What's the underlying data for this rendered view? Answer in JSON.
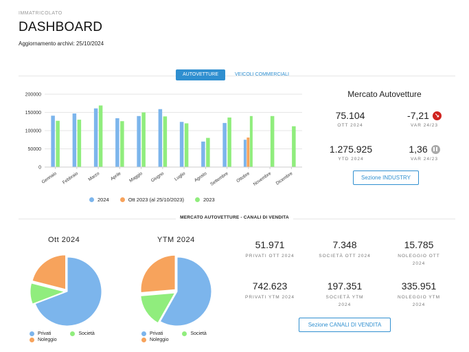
{
  "header": {
    "subtitle": "IMMATRICOLATO",
    "title": "DASHBOARD",
    "update": "Aggiornamento archivi: 25/10/2024"
  },
  "tabs": [
    {
      "label": "AUTOVETTURE",
      "active": true
    },
    {
      "label": "VEICOLI COMMERCIALI",
      "active": false
    }
  ],
  "chart_data": [
    {
      "type": "bar",
      "categories": [
        "Gennaio",
        "Febbraio",
        "Marzo",
        "Aprile",
        "Maggio",
        "Giugno",
        "Luglio",
        "Agosto",
        "Settembre",
        "Ottobre",
        "Novembre",
        "Dicembre"
      ],
      "series": [
        {
          "name": "2024",
          "color": "#7cb5ec",
          "values": [
            141000,
            147000,
            161000,
            134000,
            140000,
            159000,
            124000,
            70000,
            121000,
            75000,
            null,
            null
          ]
        },
        {
          "name": "Ott 2023 (al 25/10/2023)",
          "color": "#f7a35c",
          "values": [
            null,
            null,
            null,
            null,
            null,
            null,
            null,
            null,
            null,
            81000,
            null,
            null
          ]
        },
        {
          "name": "2023",
          "color": "#90ed7d",
          "values": [
            127000,
            130000,
            169000,
            126000,
            150000,
            139000,
            120000,
            80000,
            136000,
            140000,
            140000,
            112000
          ]
        }
      ],
      "ylim": [
        0,
        200000
      ],
      "yticks": [
        0,
        50000,
        100000,
        150000,
        200000
      ],
      "legend": "bottom"
    },
    {
      "type": "pie",
      "title": "Ott 2024",
      "labels": [
        "Privati",
        "Società",
        "Noleggio"
      ],
      "values": [
        51971,
        7348,
        15785
      ],
      "colors": [
        "#7cb5ec",
        "#90ed7d",
        "#f7a35c"
      ]
    },
    {
      "type": "pie",
      "title": "YTM 2024",
      "labels": [
        "Privati",
        "Società",
        "Noleggio"
      ],
      "values": [
        742623,
        197351,
        335951
      ],
      "colors": [
        "#7cb5ec",
        "#90ed7d",
        "#f7a35c"
      ]
    }
  ],
  "mercato": {
    "title": "Mercato Autovetture",
    "ott_value": "75.104",
    "ott_label": "OTT 2024",
    "var_value": "-7,21",
    "var_label": "VAR 24/23",
    "ytd_value": "1.275.925",
    "ytd_label": "YTD 2024",
    "var_ytd_value": "1,36",
    "var_ytd_label": "VAR 24/23",
    "button": "Sezione INDUSTRY"
  },
  "canali": {
    "section_title": "MERCATO AUTOVETTURE - CANALI DI VENDITA",
    "items": [
      {
        "value": "51.971",
        "label": "PRIVATI OTT 2024"
      },
      {
        "value": "7.348",
        "label": "SOCIETÀ OTT 2024"
      },
      {
        "value": "15.785",
        "label": "NOLEGGIO OTT 2024"
      },
      {
        "value": "742.623",
        "label": "PRIVATI YTM 2024"
      },
      {
        "value": "197.351",
        "label": "SOCIETÀ YTM 2024"
      },
      {
        "value": "335.951",
        "label": "NOLEGGIO YTM 2024"
      }
    ],
    "button": "Sezione CANALI DI VENDITA"
  },
  "colors": {
    "accent": "#2f8fd0",
    "blue": "#7cb5ec",
    "orange": "#f7a35c",
    "green": "#90ed7d",
    "down": "#d0231f",
    "neutral": "#aaaaaa"
  },
  "icons": {
    "var_down": "arrow-down-right-icon",
    "var_ytd": "pause-icon"
  }
}
